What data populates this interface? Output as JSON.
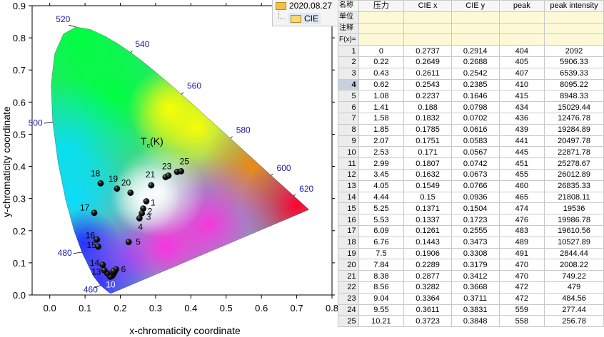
{
  "chart_data": {
    "type": "scatter",
    "xlabel": "x-chromaticity coordinate",
    "ylabel": "y-chromaticity coordinate",
    "xlim": [
      -0.05,
      0.8
    ],
    "ylim": [
      0.0,
      0.9
    ],
    "x_ticks": [
      "0.0",
      "0.1",
      "0.2",
      "0.3",
      "0.4",
      "0.5",
      "0.6",
      "0.7",
      "0.8"
    ],
    "y_ticks": [
      "0.0",
      "0.1",
      "0.2",
      "0.3",
      "0.4",
      "0.5",
      "0.6",
      "0.7",
      "0.8",
      "0.9"
    ],
    "annotation": "T",
    "annotation_sub": "c",
    "annotation_suffix": "(K)",
    "wavelength_labels": [
      {
        "label": "460",
        "x": 0.144,
        "y": 0.03
      },
      {
        "label": "480",
        "x": 0.091,
        "y": 0.133
      },
      {
        "label": "500",
        "x": 0.008,
        "y": 0.538
      },
      {
        "label": "520",
        "x": 0.074,
        "y": 0.834
      },
      {
        "label": "540",
        "x": 0.23,
        "y": 0.754
      },
      {
        "label": "560",
        "x": 0.373,
        "y": 0.624
      },
      {
        "label": "580",
        "x": 0.512,
        "y": 0.487
      },
      {
        "label": "600",
        "x": 0.627,
        "y": 0.372
      },
      {
        "label": "620",
        "x": 0.691,
        "y": 0.308
      }
    ],
    "points": [
      {
        "id": "1",
        "x": 0.2737,
        "y": 0.2914
      },
      {
        "id": "2",
        "x": 0.2649,
        "y": 0.2688
      },
      {
        "id": "3",
        "x": 0.2611,
        "y": 0.2542
      },
      {
        "id": "4",
        "x": 0.2543,
        "y": 0.2385
      },
      {
        "id": "5",
        "x": 0.2237,
        "y": 0.1646
      },
      {
        "id": "6",
        "x": 0.188,
        "y": 0.0798
      },
      {
        "id": "7",
        "x": 0.1832,
        "y": 0.0702
      },
      {
        "id": "8",
        "x": 0.1785,
        "y": 0.0616
      },
      {
        "id": "9",
        "x": 0.1751,
        "y": 0.0583
      },
      {
        "id": "10",
        "x": 0.171,
        "y": 0.0567
      },
      {
        "id": "11",
        "x": 0.1807,
        "y": 0.0742
      },
      {
        "id": "12",
        "x": 0.1632,
        "y": 0.0673
      },
      {
        "id": "13",
        "x": 0.1549,
        "y": 0.0766
      },
      {
        "id": "14",
        "x": 0.15,
        "y": 0.0936
      },
      {
        "id": "15",
        "x": 0.1371,
        "y": 0.1504
      },
      {
        "id": "16",
        "x": 0.1337,
        "y": 0.1723
      },
      {
        "id": "17",
        "x": 0.1261,
        "y": 0.2555
      },
      {
        "id": "18",
        "x": 0.1443,
        "y": 0.3473
      },
      {
        "id": "19",
        "x": 0.1906,
        "y": 0.3308
      },
      {
        "id": "20",
        "x": 0.2289,
        "y": 0.3179
      },
      {
        "id": "21",
        "x": 0.2877,
        "y": 0.3412
      },
      {
        "id": "22",
        "x": 0.3282,
        "y": 0.3668
      },
      {
        "id": "23",
        "x": 0.3364,
        "y": 0.3711
      },
      {
        "id": "24",
        "x": 0.3611,
        "y": 0.3831
      },
      {
        "id": "25",
        "x": 0.3723,
        "y": 0.3848
      }
    ],
    "point_labels": [
      "1",
      "2",
      "3",
      "4",
      "5",
      "6",
      "10",
      "13",
      "14",
      "15",
      "16",
      "17",
      "18",
      "19",
      "20",
      "21",
      "23",
      "25"
    ],
    "colors": {
      "wavelength_label": "#1a1aa8",
      "point": "#000000",
      "axis": "#000000"
    }
  },
  "tree": {
    "folder_date": "2020.08.27",
    "subfolder": "CIE",
    "icons": [
      "folder-icon",
      "open-folder-icon"
    ]
  },
  "sheet": {
    "meta_labels": {
      "name": "名称",
      "unit": "单位",
      "comment": "注释",
      "formula": "F(x)="
    },
    "headers": [
      "压力",
      "CIE x",
      "CIE y",
      "peak",
      "peak intensity"
    ],
    "current_row": "4",
    "rows": [
      [
        "1",
        "0",
        "0.2737",
        "0.2914",
        "404",
        "2092"
      ],
      [
        "2",
        "0.22",
        "0.2649",
        "0.2688",
        "405",
        "5906.33"
      ],
      [
        "3",
        "0.43",
        "0.2611",
        "0.2542",
        "407",
        "6539.33"
      ],
      [
        "4",
        "0.62",
        "0.2543",
        "0.2385",
        "410",
        "8095.22"
      ],
      [
        "5",
        "1.08",
        "0.2237",
        "0.1646",
        "415",
        "8948.33"
      ],
      [
        "6",
        "1.41",
        "0.188",
        "0.0798",
        "434",
        "15029.44"
      ],
      [
        "7",
        "1.58",
        "0.1832",
        "0.0702",
        "436",
        "12476.78"
      ],
      [
        "8",
        "1.85",
        "0.1785",
        "0.0616",
        "439",
        "19284.89"
      ],
      [
        "9",
        "2.07",
        "0.1751",
        "0.0583",
        "441",
        "20497.78"
      ],
      [
        "10",
        "2.53",
        "0.171",
        "0.0567",
        "445",
        "22871.78"
      ],
      [
        "11",
        "2.99",
        "0.1807",
        "0.0742",
        "451",
        "25278.67"
      ],
      [
        "12",
        "3.45",
        "0.1632",
        "0.0673",
        "455",
        "26012.89"
      ],
      [
        "13",
        "4.05",
        "0.1549",
        "0.0766",
        "460",
        "26835.33"
      ],
      [
        "14",
        "4.44",
        "0.15",
        "0.0936",
        "465",
        "21808.11"
      ],
      [
        "15",
        "5.25",
        "0.1371",
        "0.1504",
        "474",
        "19536"
      ],
      [
        "16",
        "5.53",
        "0.1337",
        "0.1723",
        "476",
        "19986.78"
      ],
      [
        "17",
        "6.09",
        "0.1261",
        "0.2555",
        "483",
        "19610.56"
      ],
      [
        "18",
        "6.76",
        "0.1443",
        "0.3473",
        "489",
        "10527.89"
      ],
      [
        "19",
        "7.5",
        "0.1906",
        "0.3308",
        "491",
        "2844.44"
      ],
      [
        "20",
        "7.84",
        "0.2289",
        "0.3179",
        "470",
        "2008.22"
      ],
      [
        "21",
        "8.38",
        "0.2877",
        "0.3412",
        "470",
        "749.22"
      ],
      [
        "22",
        "8.56",
        "0.3282",
        "0.3668",
        "472",
        "479"
      ],
      [
        "23",
        "9.04",
        "0.3364",
        "0.3711",
        "472",
        "484.56"
      ],
      [
        "24",
        "9.55",
        "0.3611",
        "0.3831",
        "559",
        "277.44"
      ],
      [
        "25",
        "10.21",
        "0.3723",
        "0.3848",
        "558",
        "256.78"
      ]
    ]
  }
}
